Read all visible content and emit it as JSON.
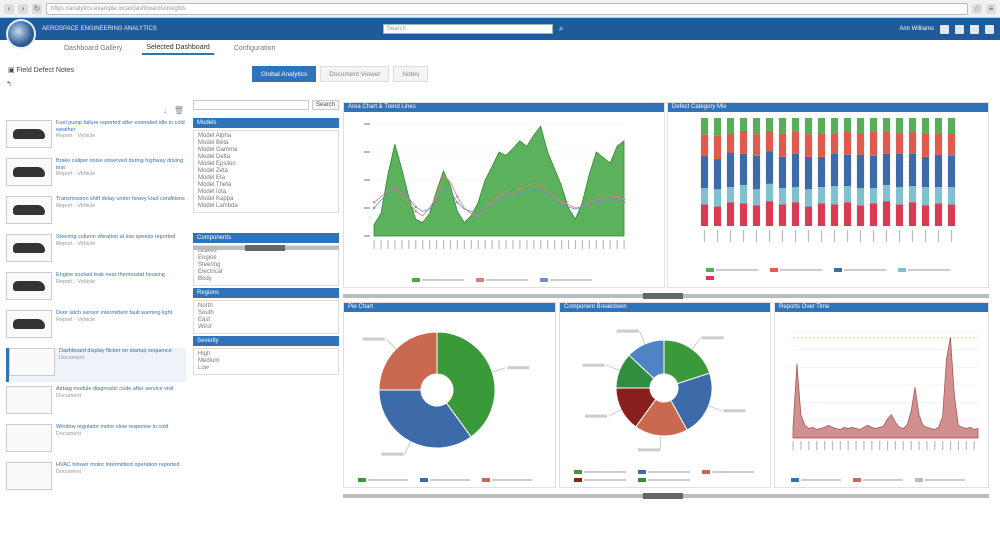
{
  "browser": {
    "url": "https://analytics.example.local/dashboards/insights"
  },
  "app": {
    "title": "AEROSPACE ENGINEERING ANALYTICS",
    "user": "Ann Williams",
    "search_placeholder": "Search"
  },
  "nav": {
    "tabs": [
      "Dashboard Gallery",
      "Selected Dashboard",
      "Configuration"
    ]
  },
  "left": {
    "title": "Field Defect Notes",
    "items": [
      {
        "title": "Fuel pump failure reported after extended idle in cold weather",
        "meta": "Report · Vehicle"
      },
      {
        "title": "Brake caliper noise observed during highway driving test",
        "meta": "Report · Vehicle"
      },
      {
        "title": "Transmission shift delay under heavy load conditions",
        "meta": "Report · Vehicle"
      },
      {
        "title": "Steering column vibration at low speeds reported",
        "meta": "Report · Vehicle"
      },
      {
        "title": "Engine coolant leak near thermostat housing",
        "meta": "Report · Vehicle"
      },
      {
        "title": "Door latch sensor intermittent fault warning light",
        "meta": "Report · Vehicle"
      },
      {
        "title": "Dashboard display flicker on startup sequence",
        "meta": "Document"
      },
      {
        "title": "Airbag module diagnostic code after service visit",
        "meta": "Document"
      },
      {
        "title": "Window regulator motor slow response in cold",
        "meta": "Document"
      },
      {
        "title": "HVAC blower motor intermittent operation reported",
        "meta": "Document"
      }
    ]
  },
  "toptabs": [
    "Global Analytics",
    "Document Viewer",
    "Notes"
  ],
  "filters": {
    "search_button": "Search",
    "sections": [
      {
        "title": "Models",
        "options": [
          "Model Alpha",
          "Model Beta",
          "Model Gamma",
          "Model Delta",
          "Model Epsilon",
          "Model Zeta",
          "Model Eta",
          "Model Theta",
          "Model Iota",
          "Model Kappa",
          "Model Lambda"
        ]
      },
      {
        "title": "Components",
        "options": [
          "Brakes",
          "Engine",
          "Steering",
          "Electrical",
          "Body"
        ]
      },
      {
        "title": "Regions",
        "options": [
          "North",
          "South",
          "East",
          "West"
        ]
      },
      {
        "title": "Severity",
        "options": [
          "High",
          "Medium",
          "Low"
        ]
      }
    ]
  },
  "panels": {
    "area": {
      "title": "Area Chart & Trend Lines"
    },
    "stacked": {
      "title": "Defect Category Mix"
    },
    "pie1": {
      "title": "Pie Chart"
    },
    "pie2": {
      "title": "Component Breakdown"
    },
    "spike": {
      "title": "Reports Over Time"
    }
  },
  "colors": {
    "blue": "#2f73b8",
    "green": "#3a9a3a",
    "red": "#d84b4b",
    "teal": "#7fc1cf",
    "navy": "#3d6aa8"
  },
  "chart_data": [
    {
      "type": "area",
      "categories": [
        "1",
        "2",
        "3",
        "4",
        "5",
        "6",
        "7",
        "8",
        "9",
        "10",
        "11",
        "12",
        "13",
        "14",
        "15",
        "16",
        "17",
        "18",
        "19",
        "20",
        "21",
        "22",
        "23",
        "24",
        "25",
        "26",
        "27",
        "28",
        "29",
        "30",
        "31",
        "32",
        "33",
        "34",
        "35",
        "36",
        "37"
      ],
      "series": [
        {
          "values": [
            10,
            20,
            55,
            82,
            60,
            35,
            15,
            12,
            20,
            40,
            58,
            45,
            22,
            12,
            18,
            30,
            50,
            62,
            75,
            72,
            78,
            85,
            80,
            90,
            98,
            75,
            60,
            45,
            25,
            15,
            30,
            55,
            75,
            70,
            65,
            80,
            85
          ]
        },
        {
          "values": [
            30,
            35,
            40,
            42,
            38,
            30,
            22,
            18,
            25,
            35,
            55,
            48,
            35,
            25,
            20,
            18,
            25,
            30,
            35,
            40,
            38,
            42,
            45,
            48,
            44,
            40,
            35,
            30,
            28,
            25,
            26,
            30,
            32,
            34,
            36,
            35,
            33
          ]
        },
        {
          "values": [
            25,
            32,
            38,
            44,
            40,
            34,
            26,
            22,
            24,
            30,
            42,
            40,
            30,
            24,
            22,
            20,
            24,
            28,
            32,
            36,
            34,
            38,
            40,
            42,
            40,
            38,
            34,
            28,
            26,
            24,
            26,
            28,
            30,
            30,
            32,
            32,
            30
          ]
        }
      ]
    },
    {
      "type": "bar",
      "categories": [
        "1",
        "2",
        "3",
        "4",
        "5",
        "6",
        "7",
        "8",
        "9",
        "10",
        "11",
        "12",
        "13",
        "14",
        "15",
        "16",
        "17",
        "18",
        "19",
        "20"
      ],
      "series": [
        {
          "values": [
            20,
            18,
            22,
            21,
            19,
            23,
            20,
            22,
            18,
            21,
            20,
            22,
            19,
            21,
            23,
            20,
            22,
            19,
            21,
            20
          ]
        },
        {
          "values": [
            15,
            16,
            14,
            17,
            15,
            16,
            15,
            14,
            16,
            15,
            17,
            15,
            16,
            14,
            15,
            16,
            15,
            17,
            15,
            16
          ]
        },
        {
          "values": [
            30,
            28,
            32,
            29,
            31,
            30,
            29,
            31,
            30,
            28,
            30,
            29,
            31,
            30,
            29,
            31,
            30,
            28,
            30,
            29
          ]
        },
        {
          "values": [
            20,
            22,
            18,
            21,
            20,
            19,
            22,
            20,
            21,
            22,
            19,
            21,
            20,
            22,
            20,
            19,
            20,
            22,
            20,
            21
          ]
        },
        {
          "values": [
            15,
            16,
            14,
            12,
            15,
            12,
            14,
            13,
            15,
            14,
            14,
            13,
            14,
            13,
            13,
            14,
            13,
            14,
            14,
            14
          ]
        }
      ]
    },
    {
      "type": "pie",
      "slices": [
        {
          "value": 40,
          "color": "#3a9a3a"
        },
        {
          "value": 35,
          "color": "#3d6aa8"
        },
        {
          "value": 25,
          "color": "#c96a50"
        }
      ]
    },
    {
      "type": "pie",
      "slices": [
        {
          "value": 20,
          "color": "#3a9a3a"
        },
        {
          "value": 22,
          "color": "#3d6aa8"
        },
        {
          "value": 18,
          "color": "#c96a50"
        },
        {
          "value": 15,
          "color": "#8a1f1f"
        },
        {
          "value": 12,
          "color": "#2f8f3f"
        },
        {
          "value": 13,
          "color": "#4f84c4"
        }
      ]
    },
    {
      "type": "line",
      "categories": [
        "1",
        "2",
        "3",
        "4",
        "5",
        "6",
        "7",
        "8",
        "9",
        "10",
        "11",
        "12",
        "13",
        "14",
        "15",
        "16",
        "17",
        "18",
        "19",
        "20",
        "21",
        "22",
        "23",
        "24",
        "25",
        "26",
        "27",
        "28",
        "29",
        "30",
        "31",
        "32",
        "33",
        "34",
        "35",
        "36",
        "37",
        "38",
        "39",
        "40",
        "41",
        "42",
        "43",
        "44",
        "45",
        "46",
        "47",
        "48"
      ],
      "values": [
        10,
        70,
        22,
        12,
        9,
        10,
        8,
        9,
        10,
        12,
        10,
        9,
        8,
        10,
        9,
        10,
        9,
        8,
        10,
        12,
        10,
        9,
        10,
        11,
        18,
        22,
        15,
        10,
        9,
        12,
        25,
        48,
        22,
        12,
        10,
        9,
        8,
        10,
        20,
        75,
        95,
        40,
        12,
        10,
        9,
        10,
        8,
        9
      ]
    }
  ]
}
